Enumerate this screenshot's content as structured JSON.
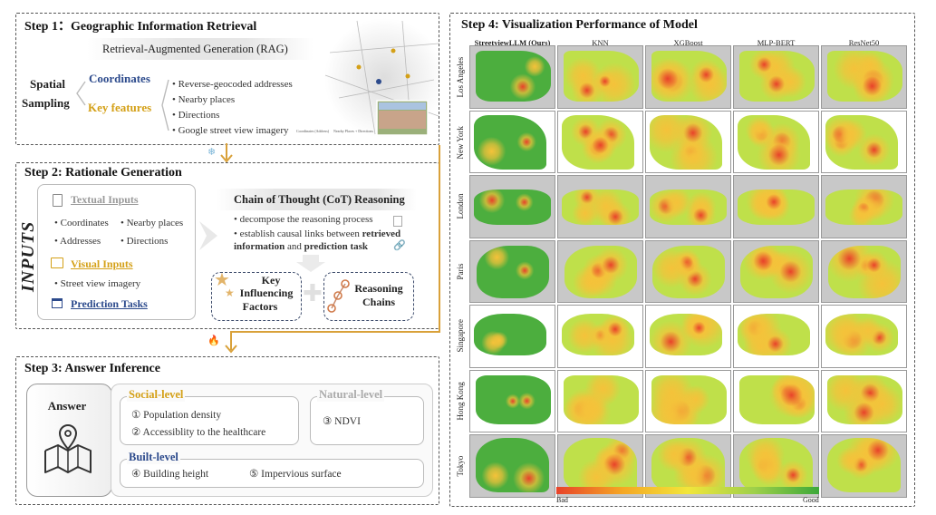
{
  "step1": {
    "title": "Step 1：Geographic Information Retrieval",
    "rag": "Retrieval-Augmented Generation (RAG)",
    "spatial": "Spatial",
    "sampling": "Sampling",
    "coordinates": "Coordinates",
    "key_features": "Key features",
    "bullets": [
      "• Reverse-geocoded addresses",
      "• Nearby places",
      "• Directions",
      "• Google street view imagery"
    ],
    "map_legend": [
      "Coordinates (Address)",
      "Nearby Places + Directions"
    ]
  },
  "step2": {
    "title": "Step 2: Rationale Generation",
    "inputs": "INPUTS",
    "textual": "Textual Inputs",
    "textual_items": [
      "• Coordinates",
      "• Nearby places",
      "• Addresses",
      "• Directions"
    ],
    "visual": "Visual Inputs",
    "visual_item": "• Street view imagery",
    "prediction": "Prediction Tasks",
    "cot_title": "Chain of Thought (CoT) Reasoning",
    "cot_b1": "• decompose the reasoning process",
    "cot_b2_pre": "• establish causal links between ",
    "cot_b2_bold1": "retrieved",
    "cot_b2_bold2": "information",
    "cot_b2_mid": " and ",
    "cot_b2_bold3": "prediction task",
    "key_factors": [
      "Key",
      "Influencing",
      "Factors"
    ],
    "reasoning": [
      "Reasoning",
      "Chains"
    ]
  },
  "step3": {
    "title": "Step 3: Answer Inference",
    "answer": "Answer",
    "social": "Social-level",
    "social_items": [
      "① Population density",
      "② Accessiblity to the healthcare"
    ],
    "natural": "Natural-level",
    "natural_items": [
      "③ NDVI"
    ],
    "built": "Built-level",
    "built_items": [
      "④ Building height",
      "⑤ Impervious surface"
    ]
  },
  "step4": {
    "title": "Step 4: Visualization Performance of Model",
    "models": [
      "StreetviewLLM (Ours)",
      "KNN",
      "XGBoost",
      "MLP-BERT",
      "ResNet50"
    ],
    "cities": [
      "Los Angeles",
      "New York",
      "London",
      "Paris",
      "Singapore",
      "Hong Kong",
      "Tokyo"
    ],
    "bad": "Bad",
    "good": "Good"
  },
  "colors": {
    "gold": "#d4a017",
    "blue": "#2c4a8c",
    "arrow": "#d9a13a"
  }
}
